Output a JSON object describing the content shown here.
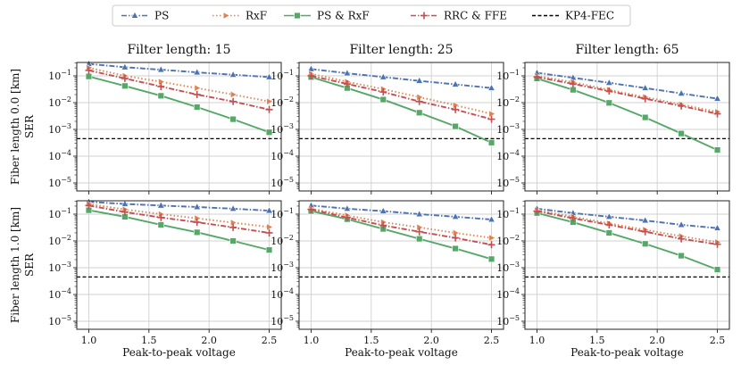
{
  "chart_data": {
    "type": "line",
    "layout": "2x3 grid of log-scale subplots, shared axes",
    "legend": {
      "placement": "top-center",
      "entries": [
        {
          "key": "ps",
          "label": "PS",
          "color": "#4c72b0",
          "dash": "dashdot",
          "marker": "triangle-up"
        },
        {
          "key": "rxf",
          "label": "RxF",
          "color": "#dd8452",
          "dash": "dotted",
          "marker": "triangle-right"
        },
        {
          "key": "psrxf",
          "label": "PS & RxF",
          "color": "#55a868",
          "dash": "solid",
          "marker": "square"
        },
        {
          "key": "rrc",
          "label": "RRC & FFE",
          "color": "#c44e52",
          "dash": "dashdot",
          "marker": "plus"
        },
        {
          "key": "kp4",
          "label": "KP4-FEC",
          "color": "#000000",
          "dash": "dashed",
          "marker": "none"
        }
      ]
    },
    "col_titles": [
      "Filter length: 15",
      "Filter length: 25",
      "Filter length: 65"
    ],
    "row_labels": [
      "Fiber length 0.0 [km]",
      "Fiber length 1.0 [km]"
    ],
    "ylabel": "SER",
    "xlabel": "Peak-to-peak voltage",
    "x": [
      1.0,
      1.3,
      1.6,
      1.9,
      2.2,
      2.5
    ],
    "xlim": [
      0.9,
      2.6
    ],
    "xticks": [
      1.0,
      1.5,
      2.0,
      2.5
    ],
    "xtick_labels": [
      "1.0",
      "1.5",
      "2.0",
      "2.5"
    ],
    "ylim_log10": [
      -5.3,
      -0.5
    ],
    "yticks_exp": [
      -1,
      -2,
      -3,
      -4,
      -5
    ],
    "ytick_labels": [
      "10^-1",
      "10^-2",
      "10^-3",
      "10^-4",
      "10^-5"
    ],
    "grid": true,
    "kp4_threshold": 0.00045,
    "panels": [
      {
        "row": 0,
        "col": 0,
        "series": {
          "ps": [
            0.28,
            0.21,
            0.17,
            0.135,
            0.11,
            0.09
          ],
          "rxf": [
            0.2,
            0.1,
            0.06,
            0.035,
            0.02,
            0.011
          ],
          "psrxf": [
            0.095,
            0.042,
            0.018,
            0.0068,
            0.0024,
            0.00078
          ],
          "rrc": [
            0.16,
            0.08,
            0.04,
            0.02,
            0.011,
            0.0055
          ]
        }
      },
      {
        "row": 0,
        "col": 1,
        "series": {
          "ps": [
            0.18,
            0.125,
            0.09,
            0.065,
            0.048,
            0.035
          ],
          "rxf": [
            0.12,
            0.06,
            0.032,
            0.016,
            0.008,
            0.0038
          ],
          "psrxf": [
            0.09,
            0.035,
            0.013,
            0.0042,
            0.0013,
            0.00032
          ],
          "rrc": [
            0.1,
            0.05,
            0.025,
            0.011,
            0.0055,
            0.0024
          ]
        }
      },
      {
        "row": 0,
        "col": 2,
        "series": {
          "ps": [
            0.13,
            0.085,
            0.055,
            0.035,
            0.022,
            0.014
          ],
          "rxf": [
            0.1,
            0.058,
            0.03,
            0.016,
            0.0085,
            0.0045
          ],
          "psrxf": [
            0.08,
            0.03,
            0.0098,
            0.0028,
            0.0007,
            0.00017
          ],
          "rrc": [
            0.09,
            0.05,
            0.027,
            0.014,
            0.0075,
            0.0038
          ]
        }
      },
      {
        "row": 1,
        "col": 0,
        "series": {
          "ps": [
            0.29,
            0.24,
            0.21,
            0.185,
            0.16,
            0.135
          ],
          "rxf": [
            0.24,
            0.15,
            0.1,
            0.07,
            0.048,
            0.033
          ],
          "psrxf": [
            0.14,
            0.08,
            0.04,
            0.021,
            0.01,
            0.0046
          ],
          "rrc": [
            0.21,
            0.12,
            0.075,
            0.05,
            0.032,
            0.02
          ]
        }
      },
      {
        "row": 1,
        "col": 1,
        "series": {
          "ps": [
            0.21,
            0.16,
            0.13,
            0.1,
            0.08,
            0.063
          ],
          "rxf": [
            0.16,
            0.09,
            0.05,
            0.032,
            0.02,
            0.013
          ],
          "psrxf": [
            0.13,
            0.065,
            0.028,
            0.012,
            0.0052,
            0.0021
          ],
          "rrc": [
            0.15,
            0.075,
            0.038,
            0.022,
            0.013,
            0.0072
          ]
        }
      },
      {
        "row": 1,
        "col": 2,
        "series": {
          "ps": [
            0.16,
            0.11,
            0.08,
            0.058,
            0.04,
            0.03
          ],
          "rxf": [
            0.14,
            0.08,
            0.045,
            0.026,
            0.015,
            0.009
          ],
          "psrxf": [
            0.11,
            0.05,
            0.02,
            0.0078,
            0.0028,
            0.00085
          ],
          "rrc": [
            0.13,
            0.07,
            0.04,
            0.022,
            0.012,
            0.0075
          ]
        }
      }
    ]
  }
}
